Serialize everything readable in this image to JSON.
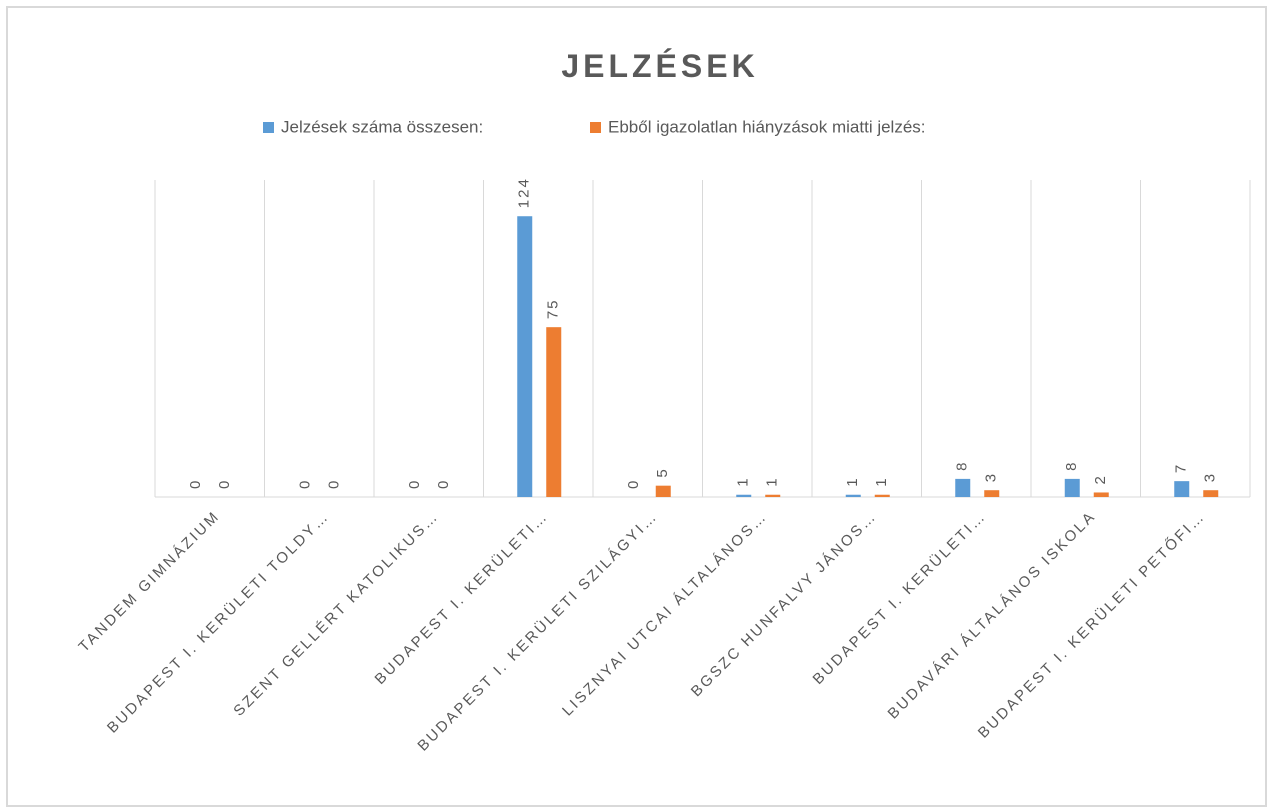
{
  "chart_data": {
    "type": "bar",
    "title": "JELZÉSEK",
    "categories": [
      "TANDEM GIMNÁZIUM",
      "BUDAPEST I. KERÜLETI TOLDY…",
      "SZENT GELLÉRT KATOLIKUS…",
      "BUDAPEST I. KERÜLETI…",
      "BUDAPEST I. KERÜLETI SZILÁGYI…",
      "LISZNYAI UTCAI ÁLTALÁNOS…",
      "BGSZC HUNFALVY JÁNOS…",
      "BUDAPEST I. KERÜLETI…",
      "BUDAVÁRI ÁLTALÁNOS ISKOLA",
      "BUDAPEST I. KERÜLETI PETŐFI…"
    ],
    "series": [
      {
        "name": "Jelzések száma összesen:",
        "color": "#5b9bd5",
        "values": [
          0,
          0,
          0,
          124,
          0,
          1,
          1,
          8,
          8,
          7
        ]
      },
      {
        "name": "Ebből igazolatlan hiányzások miatti jelzés:",
        "color": "#ed7d31",
        "values": [
          0,
          0,
          0,
          75,
          5,
          1,
          1,
          3,
          2,
          3
        ]
      }
    ],
    "ylim": [
      0,
      140
    ],
    "legend": "top"
  }
}
